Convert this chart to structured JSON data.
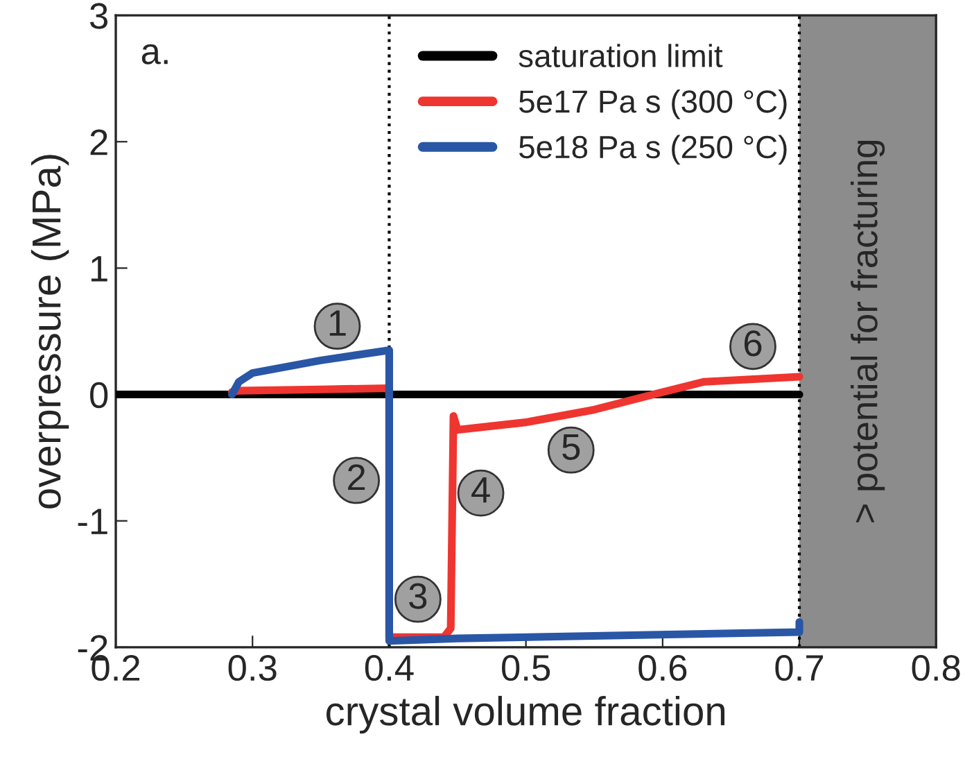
{
  "chart_data": {
    "type": "line",
    "xlabel": "crystal volume fraction",
    "ylabel": "overpressure (MPa)",
    "xlim": [
      0.2,
      0.8
    ],
    "ylim": [
      -2,
      3
    ],
    "xticks": [
      {
        "value": 0.2,
        "label": "0.2"
      },
      {
        "value": 0.3,
        "label": "0.3"
      },
      {
        "value": 0.4,
        "label": "0.4"
      },
      {
        "value": 0.5,
        "label": "0.5"
      },
      {
        "value": 0.6,
        "label": "0.6"
      },
      {
        "value": 0.7,
        "label": "0.7"
      },
      {
        "value": 0.8,
        "label": "0.8"
      }
    ],
    "yticks": [
      -2,
      -1,
      0,
      1,
      2,
      3
    ],
    "grid": false,
    "legend": "top right",
    "marker": "none",
    "line_style": "solid",
    "series": [
      {
        "name": "saturation limit",
        "color": "#000000",
        "x": [
          0.2,
          0.7
        ],
        "values": [
          0,
          0
        ]
      },
      {
        "name": "5e17 Pa s (300 °C)",
        "color": "#ef3530",
        "x": [
          0.285,
          0.29,
          0.35,
          0.4,
          0.4,
          0.44,
          0.445,
          0.447,
          0.45,
          0.5,
          0.55,
          0.593,
          0.63,
          0.7
        ],
        "values": [
          0.02,
          0.03,
          0.04,
          0.05,
          -1.92,
          -1.92,
          -1.85,
          -0.17,
          -0.28,
          -0.22,
          -0.12,
          0.0,
          0.1,
          0.14
        ]
      },
      {
        "name": "5e18 Pa s (250 °C)",
        "color": "#2a56a6",
        "x": [
          0.285,
          0.29,
          0.3,
          0.35,
          0.4,
          0.4,
          0.45,
          0.7,
          0.7
        ],
        "values": [
          0.0,
          0.1,
          0.17,
          0.27,
          0.35,
          -1.95,
          -1.93,
          -1.88,
          -1.8
        ]
      }
    ],
    "ref_lines": [
      {
        "axis": "x",
        "value": 0.4,
        "color": "#000000",
        "line_style": "dotted"
      },
      {
        "axis": "x",
        "value": 0.7,
        "color": "#000000",
        "line_style": "dotted"
      }
    ],
    "bands": [
      {
        "axis": "x",
        "from": 0.7,
        "to": 0.8,
        "label": "> potential for fracturing",
        "color": "#8c8c8c"
      }
    ],
    "annotations": [
      "a.",
      {
        "text": "1",
        "x": 0.362,
        "y": 0.54
      },
      {
        "text": "2",
        "x": 0.376,
        "y": -0.68
      },
      {
        "text": "3",
        "x": 0.421,
        "y": -1.62
      },
      {
        "text": "4",
        "x": 0.467,
        "y": -0.78
      },
      {
        "text": "5",
        "x": 0.533,
        "y": -0.44
      },
      {
        "text": "6",
        "x": 0.666,
        "y": 0.38
      }
    ]
  }
}
